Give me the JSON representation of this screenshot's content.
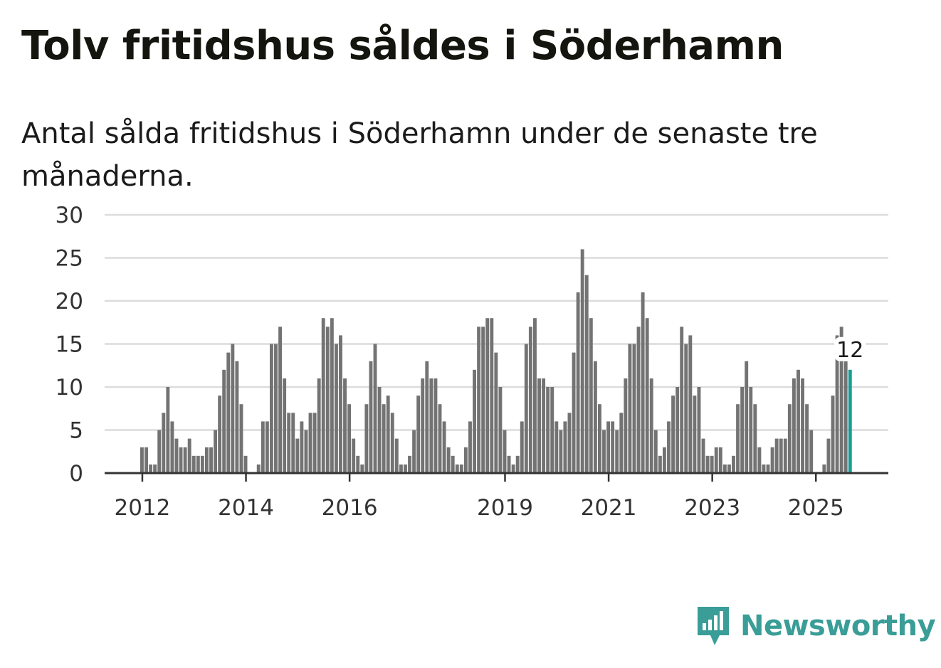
{
  "title": "Tolv fritidshus såldes i Söderhamn",
  "subtitle": "Antal sålda fritidshus i Söderhamn under de senaste tre månaderna.",
  "brand": {
    "name": "Newsworthy",
    "icon": "newsworthy-logo-icon",
    "color": "#3a9d97"
  },
  "colors": {
    "bar": "#747374",
    "highlight": "#1b9a93",
    "grid": "#dcdcdc",
    "axis": "#333333"
  },
  "chart_data": {
    "type": "bar",
    "title": "Tolv fritidshus såldes i Söderhamn",
    "xlabel": "",
    "ylabel": "",
    "ylim": [
      0,
      30
    ],
    "yticks": [
      "0",
      "5",
      "10",
      "15",
      "20",
      "25",
      "30"
    ],
    "xticks": [
      {
        "label": "2012",
        "index": 0
      },
      {
        "label": "2014",
        "index": 24
      },
      {
        "label": "2016",
        "index": 48
      },
      {
        "label": "2019",
        "index": 84
      },
      {
        "label": "2021",
        "index": 108
      },
      {
        "label": "2023",
        "index": 132
      },
      {
        "label": "2025",
        "index": 156
      }
    ],
    "start_label": "2012-01",
    "frequency": "monthly",
    "series": [
      {
        "name": "Antal sålda fritidshus",
        "values": [
          3,
          3,
          1,
          1,
          5,
          7,
          10,
          6,
          4,
          3,
          3,
          4,
          2,
          2,
          2,
          3,
          3,
          5,
          9,
          12,
          14,
          15,
          13,
          8,
          2,
          0,
          0,
          1,
          6,
          6,
          15,
          15,
          17,
          11,
          7,
          7,
          4,
          6,
          5,
          7,
          7,
          11,
          18,
          17,
          18,
          15,
          16,
          11,
          8,
          4,
          2,
          1,
          8,
          13,
          15,
          10,
          8,
          9,
          7,
          4,
          1,
          1,
          2,
          5,
          9,
          11,
          13,
          11,
          11,
          8,
          6,
          3,
          2,
          1,
          1,
          3,
          6,
          12,
          17,
          17,
          18,
          18,
          14,
          10,
          5,
          2,
          1,
          2,
          6,
          15,
          17,
          18,
          11,
          11,
          10,
          10,
          6,
          5,
          6,
          7,
          14,
          21,
          26,
          23,
          18,
          13,
          8,
          5,
          6,
          6,
          5,
          7,
          11,
          15,
          15,
          17,
          21,
          18,
          11,
          5,
          2,
          3,
          6,
          9,
          10,
          17,
          15,
          16,
          9,
          10,
          4,
          2,
          2,
          3,
          3,
          1,
          1,
          2,
          8,
          10,
          13,
          10,
          8,
          3,
          1,
          1,
          3,
          4,
          4,
          4,
          8,
          11,
          12,
          11,
          8,
          5,
          0,
          0,
          1,
          4,
          9,
          16,
          17,
          13,
          12
        ]
      }
    ],
    "highlight": {
      "index": 164,
      "value": 12,
      "label": "12"
    }
  }
}
